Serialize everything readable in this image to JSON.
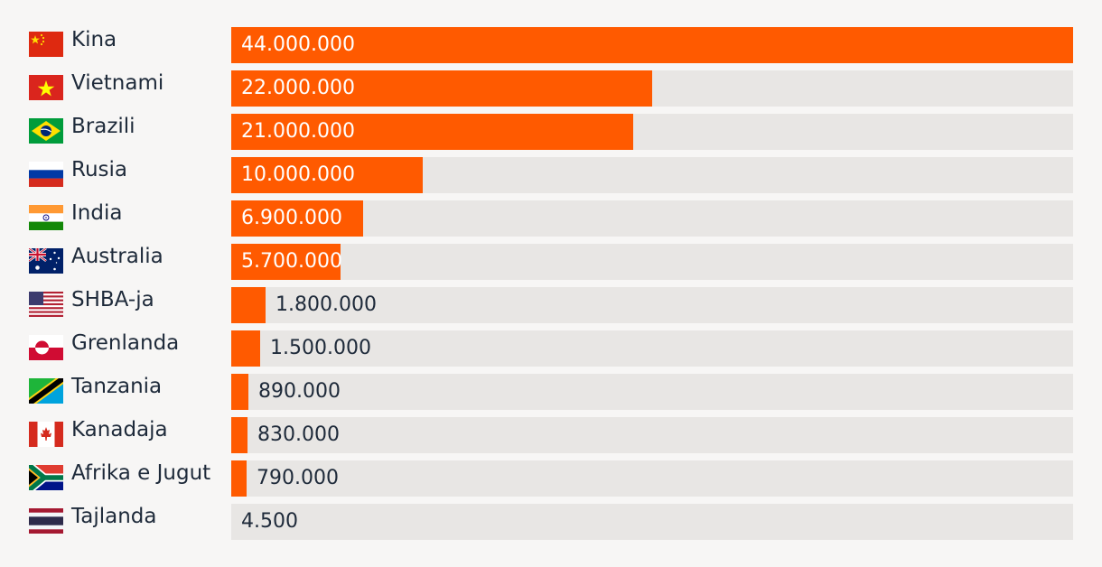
{
  "colors": {
    "bar": "#ff5a00",
    "track": "#e8e6e4",
    "text": "#1e2a3a",
    "inside_text": "#ffffff"
  },
  "chart_data": {
    "type": "bar",
    "orientation": "horizontal",
    "title": "",
    "xlabel": "",
    "ylabel": "",
    "xlim": [
      0,
      44000000
    ],
    "grid": false,
    "legend": "none",
    "categories": [
      "Kina",
      "Vietnami",
      "Brazili",
      "Rusia",
      "India",
      "Australia",
      "SHBA-ja",
      "Grenlanda",
      "Tanzania",
      "Kanadaja",
      "Afrika e Jugut",
      "Tajlanda"
    ],
    "values": [
      44000000,
      22000000,
      21000000,
      10000000,
      6900000,
      5700000,
      1800000,
      1500000,
      890000,
      830000,
      790000,
      4500
    ],
    "value_labels": [
      "44.000.000",
      "22.000.000",
      "21.000.000",
      "10.000.000",
      "6.900.000",
      "5.700.000",
      "1.800.000",
      "1.500.000",
      "890.000",
      "830.000",
      "790.000",
      "4.500"
    ],
    "flags": [
      "china-flag-icon",
      "vietnam-flag-icon",
      "brazil-flag-icon",
      "russia-flag-icon",
      "india-flag-icon",
      "australia-flag-icon",
      "usa-flag-icon",
      "greenland-flag-icon",
      "tanzania-flag-icon",
      "canada-flag-icon",
      "south-africa-flag-icon",
      "thailand-flag-icon"
    ]
  }
}
